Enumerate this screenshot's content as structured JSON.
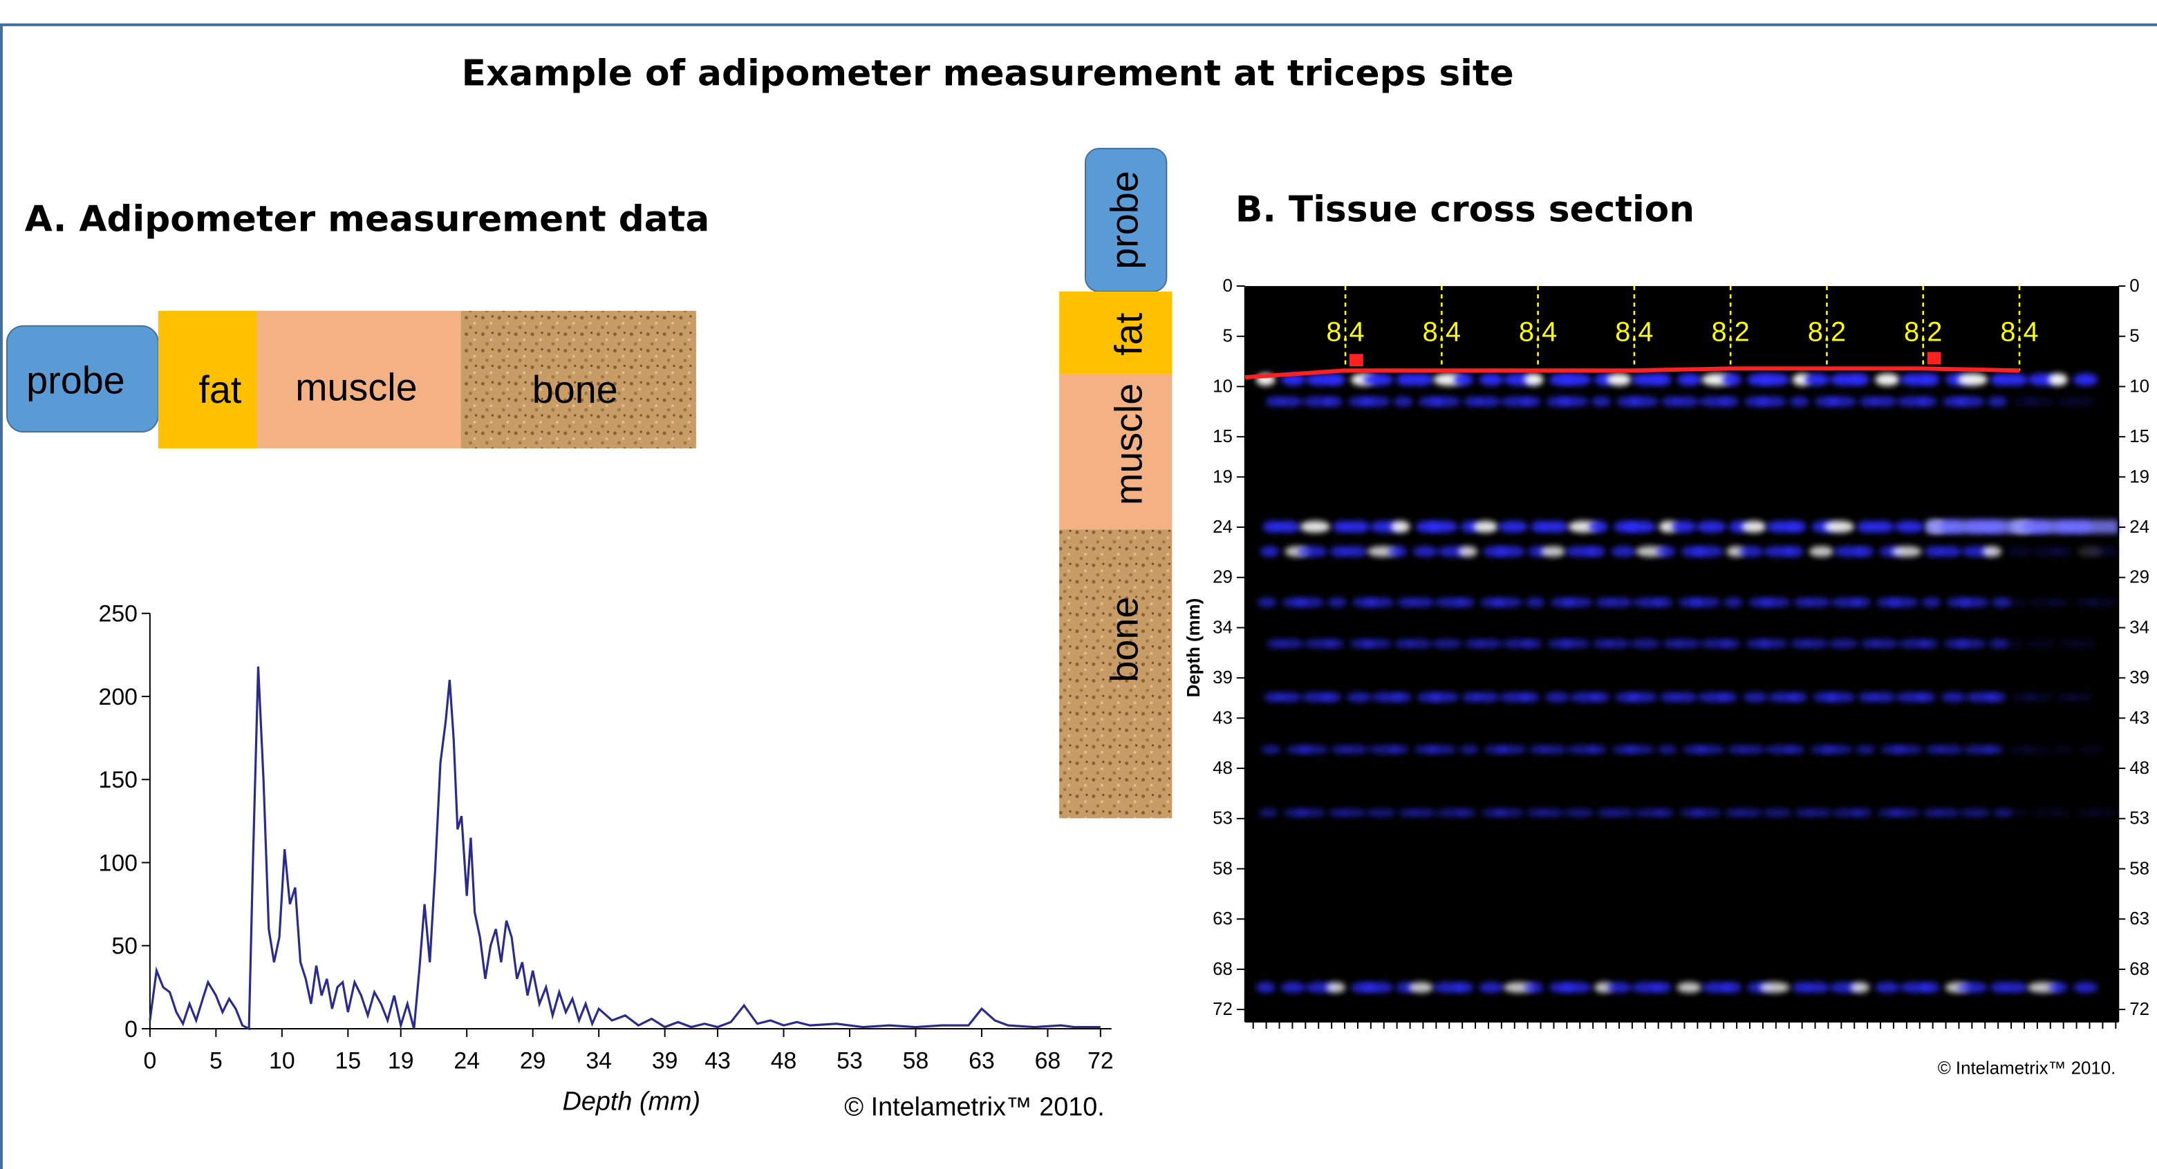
{
  "title": "Example of adipometer measurement at triceps site",
  "panel_a": {
    "heading": "A. Adipometer measurement data",
    "layers": [
      "probe",
      "fat",
      "muscle",
      "bone"
    ]
  },
  "panel_b": {
    "heading": "B. Tissue cross section",
    "layers": [
      "probe",
      "fat",
      "muscle",
      "bone"
    ]
  },
  "chart_data": [
    {
      "type": "line",
      "xlabel": "Depth (mm)",
      "credit": "© Intelametrix™ 2010.",
      "color": "#2b2b8c",
      "xlim": [
        0,
        72
      ],
      "xticks": [
        0,
        5,
        10,
        15,
        19,
        24,
        29,
        34,
        39,
        43,
        48,
        53,
        58,
        63,
        68,
        72
      ],
      "ylim": [
        0,
        250
      ],
      "yticks": [
        0,
        50,
        100,
        150,
        200,
        250
      ],
      "x": [
        0,
        0.5,
        1,
        1.5,
        2,
        2.5,
        3,
        3.5,
        4,
        4.4,
        5,
        5.5,
        6,
        6.5,
        7,
        7.5,
        7.8,
        8.2,
        8.6,
        9,
        9.4,
        9.8,
        10.2,
        10.6,
        11,
        11.4,
        11.8,
        12.2,
        12.6,
        13,
        13.4,
        13.8,
        14.2,
        14.6,
        15,
        15.5,
        16,
        16.5,
        17,
        17.5,
        18,
        18.5,
        19,
        19.5,
        20,
        20.4,
        20.8,
        21.2,
        21.6,
        22,
        22.4,
        22.7,
        23,
        23.3,
        23.6,
        24,
        24.3,
        24.6,
        25,
        25.4,
        25.8,
        26.2,
        26.6,
        27,
        27.4,
        27.8,
        28.2,
        28.6,
        29,
        29.5,
        30,
        30.5,
        31,
        31.5,
        32,
        32.5,
        33,
        33.5,
        34,
        35,
        36,
        37,
        38,
        39,
        40,
        41,
        42,
        43,
        44,
        45,
        46,
        47,
        48,
        49,
        50,
        52,
        54,
        56,
        58,
        60,
        62,
        63,
        64,
        65,
        67,
        69,
        70,
        72
      ],
      "values": [
        5,
        35,
        25,
        22,
        10,
        3,
        15,
        5,
        18,
        28,
        20,
        10,
        18,
        12,
        2,
        0,
        100,
        218,
        150,
        60,
        40,
        55,
        108,
        75,
        85,
        40,
        30,
        15,
        38,
        20,
        30,
        12,
        25,
        28,
        10,
        28,
        20,
        8,
        22,
        15,
        5,
        20,
        2,
        15,
        0,
        35,
        75,
        40,
        95,
        160,
        185,
        210,
        175,
        120,
        128,
        80,
        115,
        70,
        55,
        30,
        50,
        60,
        40,
        65,
        55,
        30,
        40,
        20,
        35,
        15,
        25,
        8,
        22,
        10,
        18,
        5,
        15,
        3,
        12,
        5,
        8,
        2,
        6,
        1,
        4,
        1,
        3,
        1,
        4,
        14,
        3,
        5,
        2,
        4,
        2,
        3,
        1,
        2,
        1,
        2,
        2,
        12,
        5,
        2,
        1,
        2,
        1,
        1
      ]
    },
    {
      "type": "line",
      "ylabel": "Depth (mm)",
      "credit": "© Intelametrix™ 2010.",
      "color": "#ff2020",
      "label_color": "#ffff00",
      "plot_background": "#000000",
      "inverted_y": true,
      "ylim": [
        0,
        72
      ],
      "yticks": [
        0,
        5,
        10,
        15,
        19,
        24,
        29,
        34,
        39,
        43,
        48,
        53,
        58,
        63,
        68,
        72
      ],
      "categories": [
        null,
        null,
        null,
        null,
        null,
        null,
        null,
        null
      ],
      "values": [
        8.4,
        8.4,
        8.4,
        8.4,
        8.2,
        8.2,
        8.2,
        8.4
      ]
    }
  ]
}
